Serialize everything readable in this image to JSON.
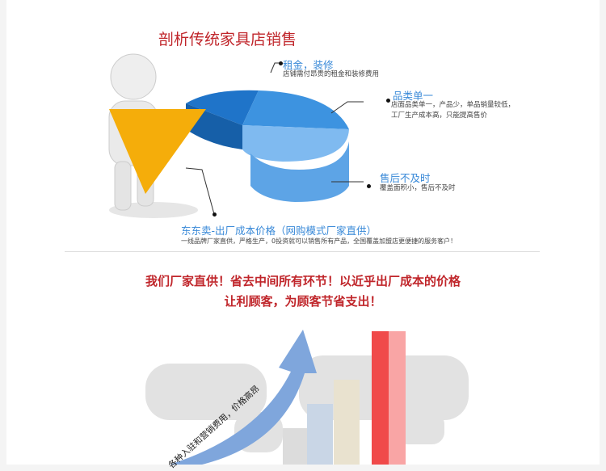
{
  "section1": {
    "title": "剖析传统家具店销售",
    "items": [
      {
        "label": "租金，装修",
        "desc": "店铺需付昂贵的租金和装修费用"
      },
      {
        "label": "品类单一",
        "desc_lines": [
          "店面品类单一，产品少，单品销量较低，",
          "工厂生产成本高，只能提高售价"
        ]
      },
      {
        "label": "售后不及时",
        "desc": "覆盖面积小，售后不及时"
      },
      {
        "label": "东东卖-出厂成本价格（网购模式厂家直供）",
        "desc": "一线品牌厂家直供，严格生产，0投资就可以销售所有产品，全国覆盖加盟店更便捷的服务客户！"
      }
    ],
    "colors": {
      "pie_dark": "#1f74c9",
      "pie_mid": "#3d93e0",
      "pie_light": "#7fbaf0",
      "wedge": "#f5ad0a"
    }
  },
  "section2": {
    "slogan_line1": "我们厂家直供！省去中间所有环节！以近乎出厂成本的价格",
    "slogan_line2": "让利顾客，为顾客节省支出！",
    "arrow_text": "各种入驻和营销费用，价格高昂",
    "colors": {
      "arrow": "#7fa6dc",
      "bar_red": "#f04a4a",
      "bar_beige": "#e9e2cf",
      "bar_blue": "#c9d6e6",
      "bar_gray": "#dcdcdc"
    }
  }
}
